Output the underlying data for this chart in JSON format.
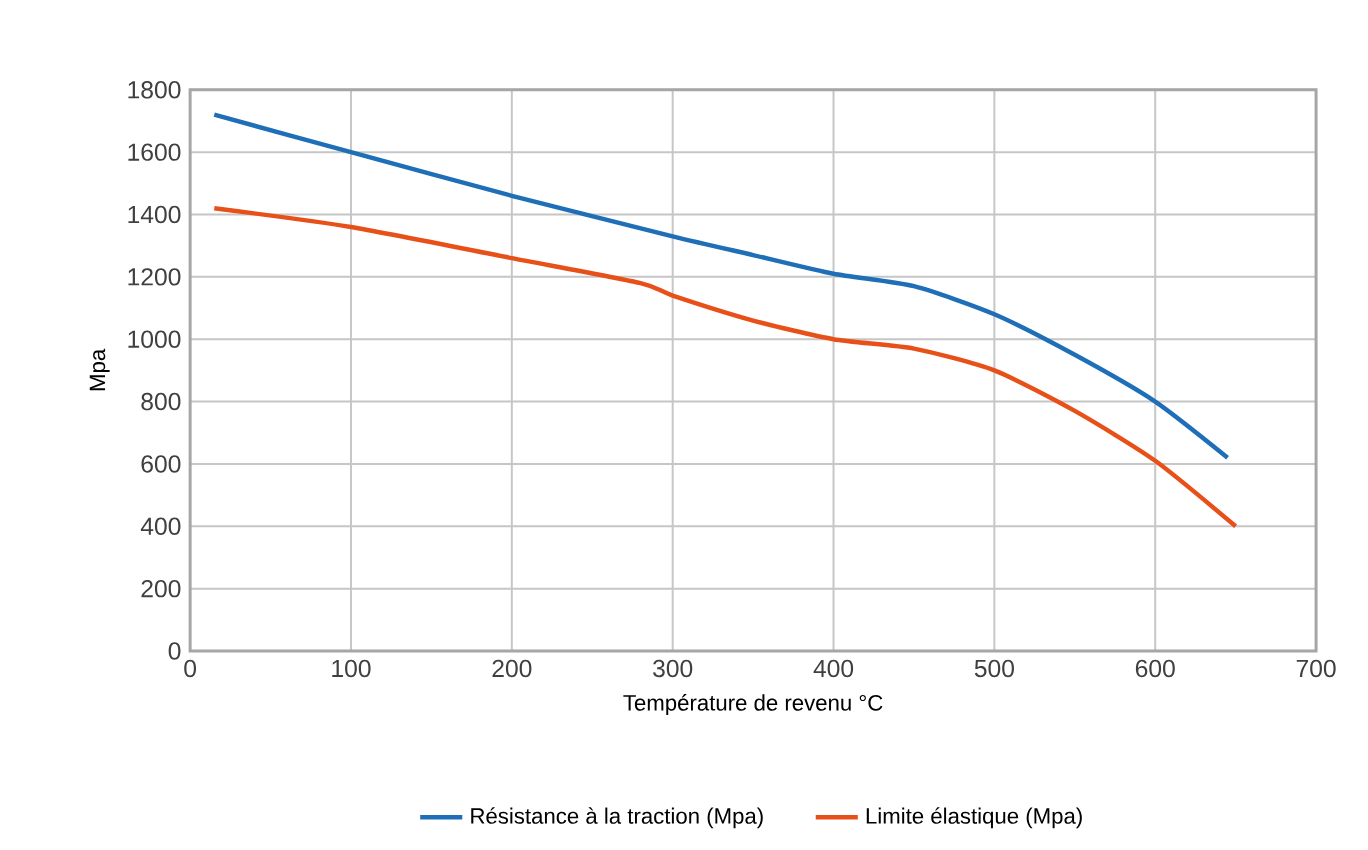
{
  "chart_data": {
    "type": "line",
    "xlabel": "Température de revenu °C",
    "ylabel": "Mpa",
    "xlim": [
      0,
      700
    ],
    "xticks": [
      0,
      100,
      200,
      300,
      400,
      500,
      600,
      700
    ],
    "ylim": [
      0,
      1800
    ],
    "yticks": [
      0,
      200,
      400,
      600,
      800,
      1000,
      1200,
      1400,
      1600,
      1800
    ],
    "grid": true,
    "legend": "bottom",
    "line_style": "solid",
    "marker": "none",
    "series": [
      {
        "name": "Résistance à la traction (Mpa)",
        "color": "#1f6fb8",
        "x": [
          15,
          100,
          200,
          300,
          350,
          400,
          450,
          500,
          550,
          600,
          645
        ],
        "values": [
          1720,
          1600,
          1460,
          1330,
          1270,
          1210,
          1170,
          1080,
          950,
          800,
          620
        ]
      },
      {
        "name": "Limite élastique (Mpa)",
        "color": "#e8501a",
        "x": [
          15,
          100,
          200,
          280,
          300,
          350,
          400,
          450,
          500,
          550,
          600,
          650
        ],
        "values": [
          1420,
          1360,
          1260,
          1180,
          1140,
          1060,
          1000,
          970,
          900,
          770,
          610,
          400
        ]
      }
    ]
  }
}
